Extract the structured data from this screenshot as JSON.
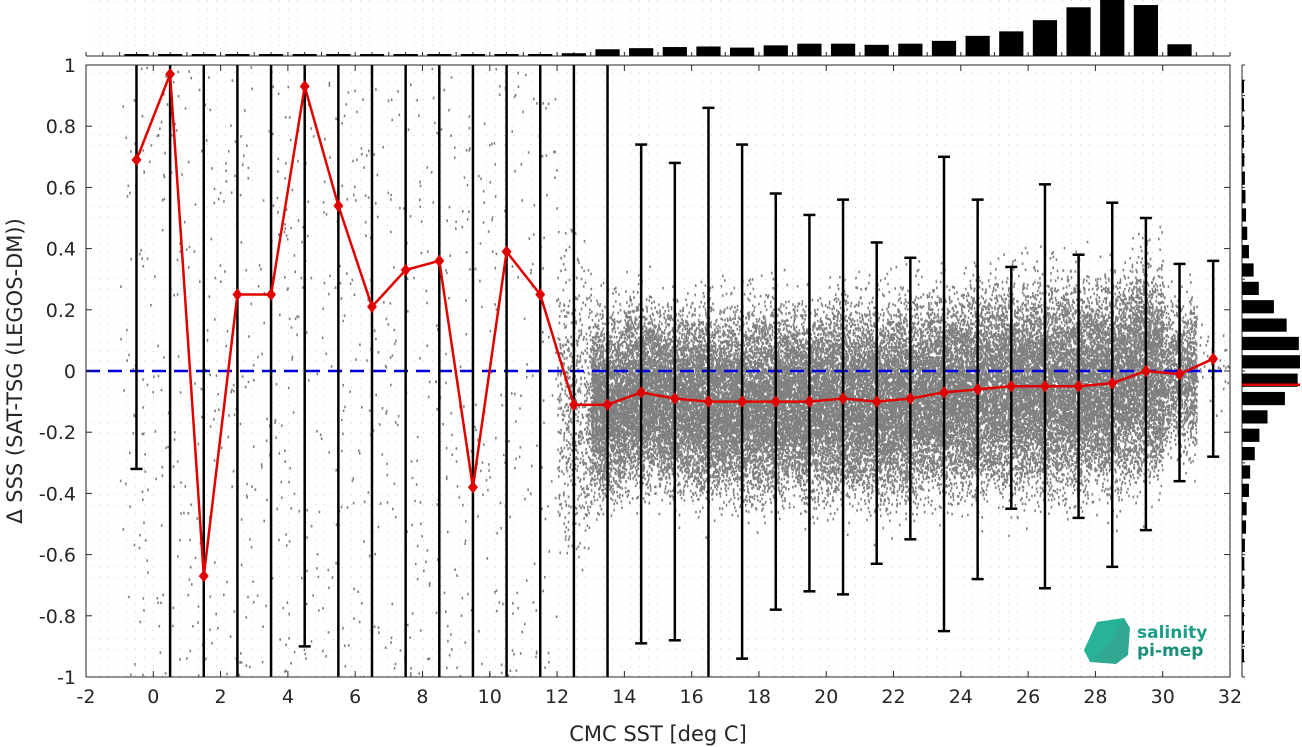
{
  "chart_data": {
    "type": "scatter",
    "xlabel": "CMC SST [deg C]",
    "ylabel": "Δ SSS (SAT-TSG (LEGOS-DM))",
    "xlim": [
      -2,
      32
    ],
    "ylim": [
      -1,
      1
    ],
    "xticks": [
      -2,
      0,
      2,
      4,
      6,
      8,
      10,
      12,
      14,
      16,
      18,
      20,
      22,
      24,
      26,
      28,
      30,
      32
    ],
    "yticks": [
      -1,
      -0.8,
      -0.6,
      -0.4,
      -0.2,
      0,
      0.2,
      0.4,
      0.6,
      0.8,
      1
    ],
    "grid": true,
    "reference_line": {
      "y": 0,
      "color": "#0000dd",
      "style": "dashed"
    },
    "colors": {
      "scatter": "#808080",
      "mean_line": "#e00000",
      "error_bars": "#000000",
      "histograms": "#000000",
      "median_marker": "#e00000"
    },
    "mean_series": {
      "x": [
        -0.5,
        0.5,
        1.5,
        2.5,
        3.5,
        4.5,
        5.5,
        6.5,
        7.5,
        8.5,
        9.5,
        10.5,
        11.5,
        12.5,
        13.5,
        14.5,
        15.5,
        16.5,
        17.5,
        18.5,
        19.5,
        20.5,
        21.5,
        22.5,
        23.5,
        24.5,
        25.5,
        26.5,
        27.5,
        28.5,
        29.5,
        30.5,
        31.5
      ],
      "y": [
        0.69,
        0.97,
        -0.67,
        0.25,
        0.25,
        0.93,
        0.54,
        0.21,
        0.33,
        0.36,
        -0.38,
        0.39,
        0.25,
        -0.11,
        -0.11,
        -0.07,
        -0.09,
        -0.1,
        -0.1,
        -0.1,
        -0.1,
        -0.09,
        -0.1,
        -0.09,
        -0.07,
        -0.06,
        -0.05,
        -0.05,
        -0.05,
        -0.04,
        0.0,
        -0.01,
        0.04
      ],
      "err_low": [
        -0.32,
        -1,
        -1,
        -1,
        -1,
        -0.9,
        -1,
        -1,
        -1,
        -1,
        -1,
        -1,
        -1,
        -1,
        -1,
        -0.89,
        -0.88,
        -1,
        -0.94,
        -0.78,
        -0.72,
        -0.73,
        -0.63,
        -0.55,
        -0.85,
        -0.68,
        -0.45,
        -0.71,
        -0.48,
        -0.64,
        -0.52,
        -0.36,
        -0.28
      ],
      "err_high": [
        1,
        1,
        1,
        1,
        1,
        1,
        1,
        1,
        1,
        1,
        1,
        1,
        1,
        1,
        1,
        0.74,
        0.68,
        0.86,
        0.74,
        0.58,
        0.51,
        0.56,
        0.42,
        0.37,
        0.7,
        0.56,
        0.34,
        0.61,
        0.38,
        0.55,
        0.5,
        0.35,
        0.36
      ]
    },
    "top_histogram": {
      "x": [
        -0.5,
        0.5,
        1.5,
        2.5,
        3.5,
        4.5,
        5.5,
        6.5,
        7.5,
        8.5,
        9.5,
        10.5,
        11.5,
        12.5,
        13.5,
        14.5,
        15.5,
        16.5,
        17.5,
        18.5,
        19.5,
        20.5,
        21.5,
        22.5,
        23.5,
        24.5,
        25.5,
        26.5,
        27.5,
        28.5,
        29.5,
        30.5
      ],
      "rel_height": [
        0.02,
        0.02,
        0.02,
        0.02,
        0.02,
        0.02,
        0.02,
        0.02,
        0.02,
        0.02,
        0.02,
        0.02,
        0.02,
        0.05,
        0.12,
        0.14,
        0.16,
        0.17,
        0.15,
        0.19,
        0.22,
        0.22,
        0.2,
        0.22,
        0.27,
        0.36,
        0.44,
        0.64,
        0.87,
        1.0,
        0.91,
        0.21
      ]
    },
    "right_histogram": {
      "y_center": [
        0.93,
        0.87,
        0.81,
        0.75,
        0.69,
        0.63,
        0.57,
        0.51,
        0.45,
        0.39,
        0.33,
        0.27,
        0.21,
        0.15,
        0.09,
        0.03,
        -0.03,
        -0.09,
        -0.15,
        -0.21,
        -0.27,
        -0.33,
        -0.39,
        -0.45,
        -0.51,
        -0.57,
        -0.63,
        -0.69,
        -0.75,
        -0.81,
        -0.87,
        -0.93
      ],
      "rel_length": [
        0.03,
        0.03,
        0.03,
        0.03,
        0.04,
        0.05,
        0.06,
        0.07,
        0.09,
        0.12,
        0.2,
        0.29,
        0.55,
        0.77,
        0.98,
        1.0,
        0.96,
        0.74,
        0.44,
        0.3,
        0.22,
        0.14,
        0.12,
        0.08,
        0.07,
        0.05,
        0.04,
        0.04,
        0.03,
        0.03,
        0.03,
        0.03
      ],
      "median": -0.045
    }
  },
  "logo": {
    "line1": "salinity",
    "line2": "pi-mep"
  }
}
